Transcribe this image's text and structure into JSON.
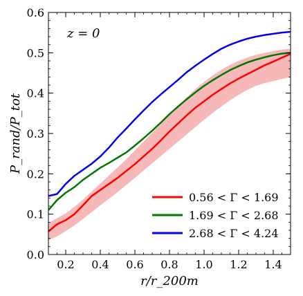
{
  "chart_data": {
    "type": "line",
    "title": "",
    "annotation": "z = 0",
    "xlabel": "r/r_200m",
    "ylabel": "P_rand/P_tot",
    "xlim": [
      0.1,
      1.5
    ],
    "ylim": [
      0.0,
      0.6
    ],
    "x_ticks": [
      0.2,
      0.4,
      0.6,
      0.8,
      1.0,
      1.2,
      1.4
    ],
    "x_tick_labels": [
      "0.2",
      "0.4",
      "0.6",
      "0.8",
      "1.0",
      "1.2",
      "1.4"
    ],
    "y_ticks": [
      0.0,
      0.1,
      0.2,
      0.3,
      0.4,
      0.5,
      0.6
    ],
    "y_tick_labels": [
      "0.0",
      "0.1",
      "0.2",
      "0.3",
      "0.4",
      "0.5",
      "0.6"
    ],
    "grid": false,
    "legend_position": "bottom-right",
    "band": {
      "color": "#f7b8b8",
      "x": [
        0.1,
        0.15,
        0.2,
        0.25,
        0.3,
        0.35,
        0.4,
        0.45,
        0.5,
        0.55,
        0.6,
        0.65,
        0.7,
        0.75,
        0.8,
        0.85,
        0.9,
        0.95,
        1.0,
        1.05,
        1.1,
        1.15,
        1.2,
        1.25,
        1.3,
        1.35,
        1.4,
        1.45,
        1.5
      ],
      "lower": [
        0.035,
        0.045,
        0.058,
        0.072,
        0.088,
        0.105,
        0.122,
        0.138,
        0.155,
        0.172,
        0.19,
        0.208,
        0.226,
        0.244,
        0.262,
        0.28,
        0.298,
        0.316,
        0.334,
        0.351,
        0.367,
        0.382,
        0.396,
        0.408,
        0.418,
        0.425,
        0.43,
        0.435,
        0.44
      ],
      "upper": [
        0.078,
        0.09,
        0.102,
        0.118,
        0.136,
        0.156,
        0.176,
        0.196,
        0.216,
        0.236,
        0.258,
        0.28,
        0.302,
        0.324,
        0.346,
        0.368,
        0.39,
        0.41,
        0.428,
        0.444,
        0.458,
        0.47,
        0.48,
        0.488,
        0.495,
        0.5,
        0.504,
        0.508,
        0.51
      ]
    },
    "series": [
      {
        "legend_label": "0.56 < Γ < 1.69",
        "color": "#ff0000",
        "x": [
          0.1,
          0.15,
          0.2,
          0.25,
          0.3,
          0.35,
          0.4,
          0.45,
          0.5,
          0.55,
          0.6,
          0.65,
          0.7,
          0.75,
          0.8,
          0.85,
          0.9,
          0.95,
          1.0,
          1.05,
          1.1,
          1.15,
          1.2,
          1.25,
          1.3,
          1.35,
          1.4,
          1.45,
          1.5
        ],
        "values": [
          0.057,
          0.075,
          0.085,
          0.1,
          0.122,
          0.145,
          0.16,
          0.175,
          0.19,
          0.207,
          0.224,
          0.243,
          0.262,
          0.283,
          0.305,
          0.325,
          0.345,
          0.364,
          0.38,
          0.396,
          0.41,
          0.424,
          0.436,
          0.447,
          0.458,
          0.469,
          0.478,
          0.488,
          0.497
        ]
      },
      {
        "legend_label": "1.69 < Γ < 2.68",
        "color": "#007700",
        "x": [
          0.1,
          0.15,
          0.2,
          0.25,
          0.3,
          0.35,
          0.4,
          0.45,
          0.5,
          0.55,
          0.6,
          0.65,
          0.7,
          0.75,
          0.8,
          0.85,
          0.9,
          0.95,
          1.0,
          1.05,
          1.1,
          1.15,
          1.2,
          1.25,
          1.3,
          1.35,
          1.4,
          1.45,
          1.5
        ],
        "values": [
          0.11,
          0.135,
          0.153,
          0.167,
          0.185,
          0.2,
          0.215,
          0.227,
          0.24,
          0.253,
          0.27,
          0.288,
          0.307,
          0.327,
          0.348,
          0.367,
          0.385,
          0.402,
          0.418,
          0.432,
          0.445,
          0.457,
          0.467,
          0.476,
          0.483,
          0.489,
          0.494,
          0.498,
          0.5
        ]
      },
      {
        "legend_label": "2.68 < Γ < 4.24",
        "color": "#0000ee",
        "x": [
          0.1,
          0.15,
          0.2,
          0.25,
          0.3,
          0.35,
          0.4,
          0.45,
          0.5,
          0.55,
          0.6,
          0.65,
          0.7,
          0.75,
          0.8,
          0.85,
          0.9,
          0.95,
          1.0,
          1.05,
          1.1,
          1.15,
          1.2,
          1.25,
          1.3,
          1.35,
          1.4,
          1.45,
          1.5
        ],
        "values": [
          0.145,
          0.15,
          0.175,
          0.195,
          0.21,
          0.225,
          0.243,
          0.265,
          0.29,
          0.312,
          0.335,
          0.357,
          0.378,
          0.397,
          0.415,
          0.433,
          0.452,
          0.468,
          0.483,
          0.497,
          0.51,
          0.52,
          0.528,
          0.535,
          0.54,
          0.544,
          0.547,
          0.55,
          0.552
        ]
      }
    ]
  }
}
